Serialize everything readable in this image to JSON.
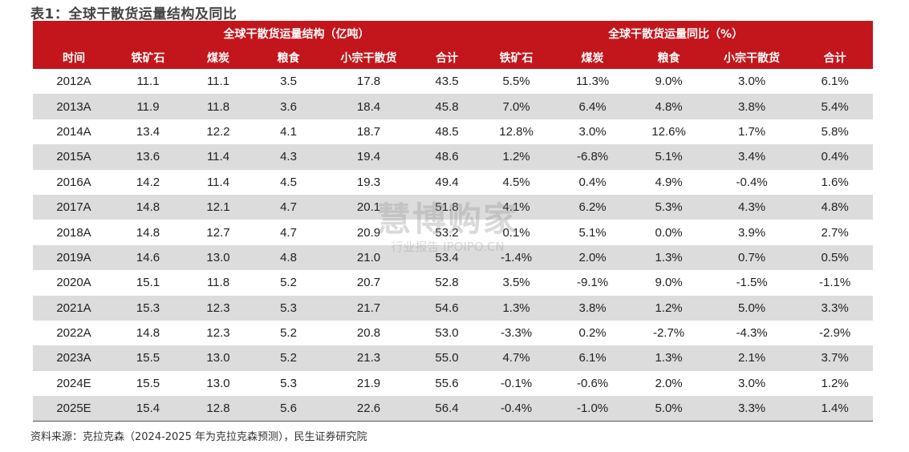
{
  "title": "表1：全球干散货运量结构及同比",
  "header": {
    "group_structure": "全球干散货运量结构（亿吨）",
    "group_yoy": "全球干散货运量同比（%）",
    "columns": [
      "时间",
      "铁矿石",
      "煤炭",
      "粮食",
      "小宗干散货",
      "合计",
      "铁矿石",
      "煤炭",
      "粮食",
      "小宗干散货",
      "合计"
    ]
  },
  "rows": [
    [
      "2012A",
      "11.1",
      "11.1",
      "3.5",
      "17.8",
      "43.5",
      "5.5%",
      "11.3%",
      "9.0%",
      "3.0%",
      "6.1%"
    ],
    [
      "2013A",
      "11.9",
      "11.8",
      "3.6",
      "18.4",
      "45.8",
      "7.0%",
      "6.4%",
      "4.8%",
      "3.8%",
      "5.4%"
    ],
    [
      "2014A",
      "13.4",
      "12.2",
      "4.1",
      "18.7",
      "48.5",
      "12.8%",
      "3.0%",
      "12.6%",
      "1.7%",
      "5.8%"
    ],
    [
      "2015A",
      "13.6",
      "11.4",
      "4.3",
      "19.4",
      "48.6",
      "1.2%",
      "-6.8%",
      "5.1%",
      "3.4%",
      "0.4%"
    ],
    [
      "2016A",
      "14.2",
      "11.4",
      "4.5",
      "19.3",
      "49.4",
      "4.5%",
      "0.4%",
      "4.9%",
      "-0.4%",
      "1.6%"
    ],
    [
      "2017A",
      "14.8",
      "12.1",
      "4.7",
      "20.1",
      "51.8",
      "4.1%",
      "6.2%",
      "5.3%",
      "4.3%",
      "4.8%"
    ],
    [
      "2018A",
      "14.8",
      "12.7",
      "4.7",
      "20.9",
      "53.2",
      "0.1%",
      "5.1%",
      "0.0%",
      "3.9%",
      "2.7%"
    ],
    [
      "2019A",
      "14.6",
      "13.0",
      "4.8",
      "21.0",
      "53.4",
      "-1.4%",
      "2.0%",
      "1.3%",
      "0.7%",
      "0.5%"
    ],
    [
      "2020A",
      "15.1",
      "11.8",
      "5.2",
      "20.7",
      "52.8",
      "3.5%",
      "-9.1%",
      "9.0%",
      "-1.5%",
      "-1.1%"
    ],
    [
      "2021A",
      "15.3",
      "12.3",
      "5.3",
      "21.7",
      "54.6",
      "1.3%",
      "3.8%",
      "1.2%",
      "5.0%",
      "3.3%"
    ],
    [
      "2022A",
      "14.8",
      "12.3",
      "5.2",
      "20.8",
      "53.0",
      "-3.3%",
      "0.2%",
      "-2.7%",
      "-4.3%",
      "-2.9%"
    ],
    [
      "2023A",
      "15.5",
      "13.0",
      "5.2",
      "21.3",
      "55.0",
      "4.7%",
      "6.1%",
      "1.3%",
      "2.1%",
      "3.7%"
    ],
    [
      "2024E",
      "15.5",
      "13.0",
      "5.3",
      "21.9",
      "55.6",
      "-0.1%",
      "-0.6%",
      "2.0%",
      "3.0%",
      "1.2%"
    ],
    [
      "2025E",
      "15.4",
      "12.8",
      "5.6",
      "22.6",
      "56.4",
      "-0.4%",
      "-1.0%",
      "5.0%",
      "3.3%",
      "1.4%"
    ]
  ],
  "source": "资料来源：克拉克森（2024-2025 年为克拉克森预测），民生证券研究院",
  "watermark": {
    "main": "慧博购家",
    "sub": "行业报告 IPOIPO.CN"
  },
  "colors": {
    "header_bg": "#c3161c",
    "stripe": "#dcdcdc"
  }
}
